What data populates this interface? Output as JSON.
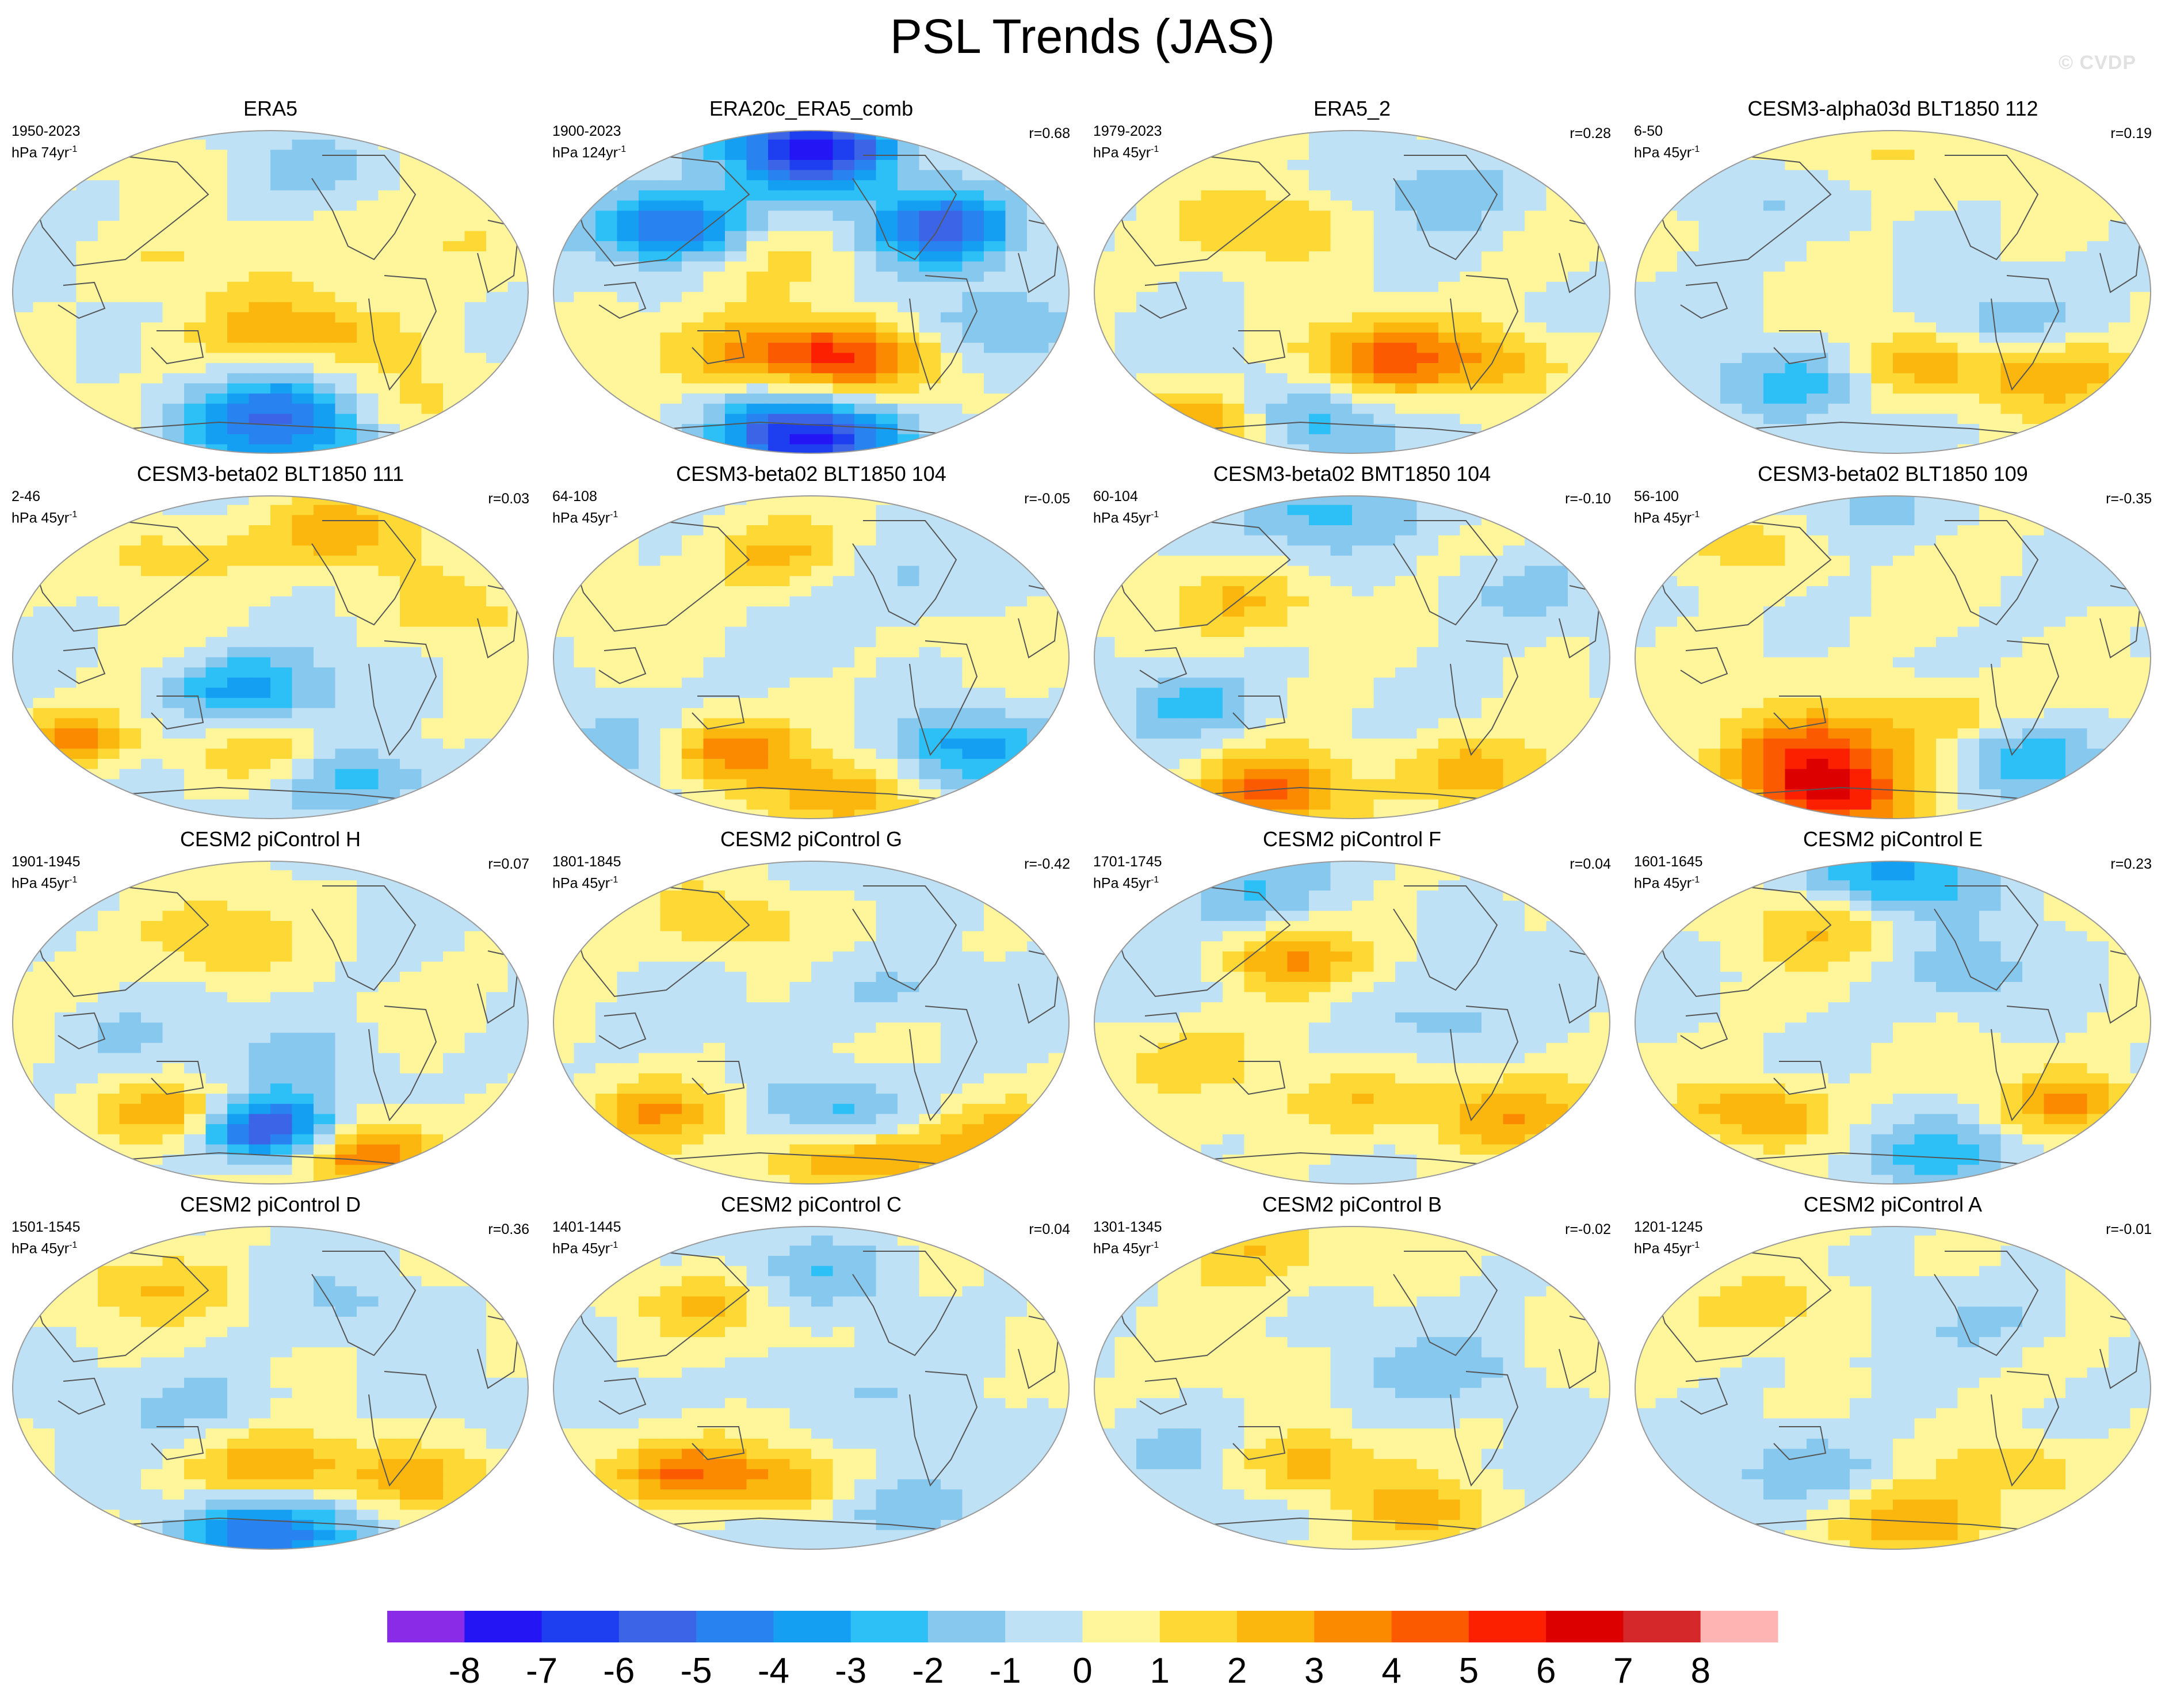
{
  "figure": {
    "title": "PSL Trends (JAS)",
    "watermark": "© CVDP"
  },
  "chart_data": {
    "type": "contour_map_panels",
    "projection": "Robinson (Pacific-centered)",
    "units": "hPa",
    "panels": [
      {
        "title": "ERA5",
        "period": "1950-2023",
        "units_line": "hPa 74yr",
        "r": "",
        "pattern": [
          [
            0.75,
            0.85,
            1.6,
            0.05
          ],
          [
            0.3,
            0.4,
            1.2,
            0.05
          ],
          [
            0.85,
            0.35,
            1.5,
            0.05
          ],
          [
            0.45,
            0.62,
            1.5,
            0.05
          ],
          [
            0.63,
            0.63,
            2.2,
            0.05
          ],
          [
            0.52,
            0.9,
            -4.8,
            0.08
          ],
          [
            0.6,
            0.14,
            -1.2,
            0.04
          ]
        ]
      },
      {
        "title": "ERA20c_ERA5_comb",
        "period": "1900-2023",
        "units_line": "hPa 124yr",
        "r": "r=0.68",
        "pattern": [
          [
            0.5,
            0.06,
            -7.5,
            0.06
          ],
          [
            0.5,
            0.95,
            -7.5,
            0.06
          ],
          [
            0.25,
            0.3,
            -5.5,
            0.05
          ],
          [
            0.75,
            0.3,
            -5,
            0.05
          ],
          [
            0.55,
            0.7,
            5.2,
            0.05
          ],
          [
            0.35,
            0.68,
            2.5,
            0.05
          ],
          [
            0.4,
            0.38,
            1.5,
            0.05
          ],
          [
            0.85,
            0.6,
            -2,
            0.05
          ]
        ]
      },
      {
        "title": "ERA5_2",
        "period": "1979-2023",
        "units_line": "hPa 45yr",
        "r": "r=0.28",
        "pattern": [
          [
            0.55,
            0.7,
            3.6,
            0.05
          ],
          [
            0.35,
            0.3,
            2,
            0.05
          ],
          [
            0.2,
            0.9,
            3,
            0.04
          ],
          [
            0.78,
            0.72,
            2.5,
            0.05
          ],
          [
            0.45,
            0.9,
            -2.5,
            0.05
          ],
          [
            0.7,
            0.2,
            -1.5,
            0.05
          ]
        ]
      },
      {
        "title": "CESM3-alpha03d BLT1850 112",
        "period": "6-50",
        "units_line": "hPa 45yr",
        "r": "r=0.19",
        "pattern": [
          [
            0.8,
            0.75,
            3.2,
            0.05
          ],
          [
            0.55,
            0.72,
            2.2,
            0.04
          ],
          [
            0.3,
            0.78,
            -2.5,
            0.05
          ],
          [
            0.45,
            0.08,
            1.6,
            0.05
          ],
          [
            0.7,
            0.6,
            -1.5,
            0.05
          ],
          [
            0.2,
            0.2,
            -1.2,
            0.05
          ]
        ]
      },
      {
        "title": "CESM3-beta02 BLT1850 111",
        "period": "2-46",
        "units_line": "hPa 45yr",
        "r": "r=0.03",
        "pattern": [
          [
            0.65,
            0.12,
            2.5,
            0.05
          ],
          [
            0.12,
            0.75,
            3.2,
            0.03
          ],
          [
            0.45,
            0.6,
            -3.5,
            0.05
          ],
          [
            0.3,
            0.18,
            1.8,
            0.05
          ],
          [
            0.48,
            0.8,
            2.2,
            0.04
          ],
          [
            0.65,
            0.88,
            -2.8,
            0.05
          ],
          [
            0.85,
            0.35,
            1.6,
            0.05
          ]
        ]
      },
      {
        "title": "CESM3-beta02 BLT1850 104",
        "period": "64-108",
        "units_line": "hPa 45yr",
        "r": "r=-0.05",
        "pattern": [
          [
            0.32,
            0.78,
            3.8,
            0.04
          ],
          [
            0.45,
            0.2,
            2.2,
            0.05
          ],
          [
            0.55,
            0.92,
            2.6,
            0.05
          ],
          [
            0.8,
            0.78,
            -3.2,
            0.05
          ],
          [
            0.15,
            0.75,
            -1.8,
            0.05
          ],
          [
            0.7,
            0.25,
            -1.4,
            0.05
          ]
        ]
      },
      {
        "title": "CESM3-beta02 BMT1850 104",
        "period": "60-104",
        "units_line": "hPa 45yr",
        "r": "r=-0.10",
        "pattern": [
          [
            0.35,
            0.92,
            4.2,
            0.05
          ],
          [
            0.3,
            0.33,
            2.4,
            0.05
          ],
          [
            0.45,
            0.05,
            -2.5,
            0.06
          ],
          [
            0.2,
            0.65,
            -2.4,
            0.04
          ],
          [
            0.75,
            0.85,
            2.8,
            0.05
          ],
          [
            0.8,
            0.3,
            -1.5,
            0.05
          ]
        ]
      },
      {
        "title": "CESM3-beta02 BLT1850 109",
        "period": "56-100",
        "units_line": "hPa 45yr",
        "r": "r=-0.35",
        "pattern": [
          [
            0.35,
            0.8,
            4.6,
            0.06
          ],
          [
            0.38,
            0.93,
            5.4,
            0.04
          ],
          [
            0.6,
            0.7,
            2.4,
            0.05
          ],
          [
            0.75,
            0.8,
            -3.2,
            0.05
          ],
          [
            0.2,
            0.15,
            2,
            0.05
          ],
          [
            0.45,
            0.05,
            -1.6,
            0.05
          ]
        ]
      },
      {
        "title": "CESM2 piControl H",
        "period": "1901-1945",
        "units_line": "hPa 45yr",
        "r": "r=0.07",
        "pattern": [
          [
            0.5,
            0.83,
            -7,
            0.04
          ],
          [
            0.68,
            0.9,
            5,
            0.04
          ],
          [
            0.32,
            0.78,
            3.2,
            0.04
          ],
          [
            0.4,
            0.25,
            1.9,
            0.05
          ],
          [
            0.6,
            0.62,
            -1.4,
            0.05
          ],
          [
            0.2,
            0.55,
            -1.2,
            0.05
          ]
        ]
      },
      {
        "title": "CESM2 piControl G",
        "period": "1801-1845",
        "units_line": "hPa 45yr",
        "r": "r=-0.42",
        "pattern": [
          [
            0.6,
            0.92,
            3.6,
            0.05
          ],
          [
            0.2,
            0.78,
            2.8,
            0.04
          ],
          [
            0.55,
            0.78,
            -2.6,
            0.05
          ],
          [
            0.35,
            0.2,
            1.7,
            0.05
          ],
          [
            0.85,
            0.85,
            2.2,
            0.05
          ],
          [
            0.65,
            0.4,
            -1.4,
            0.05
          ]
        ]
      },
      {
        "title": "CESM2 piControl F",
        "period": "1701-1745",
        "units_line": "hPa 45yr",
        "r": "r=0.04",
        "pattern": [
          [
            0.38,
            0.3,
            2.8,
            0.04
          ],
          [
            0.5,
            0.75,
            2.2,
            0.05
          ],
          [
            0.3,
            0.1,
            -2,
            0.05
          ],
          [
            0.8,
            0.78,
            2.4,
            0.05
          ],
          [
            0.65,
            0.5,
            -1.4,
            0.05
          ],
          [
            0.2,
            0.6,
            1.5,
            0.05
          ]
        ]
      },
      {
        "title": "CESM2 piControl E",
        "period": "1601-1645",
        "units_line": "hPa 45yr",
        "r": "r=0.23",
        "pattern": [
          [
            0.25,
            0.78,
            3.6,
            0.04
          ],
          [
            0.85,
            0.75,
            3,
            0.04
          ],
          [
            0.5,
            0.05,
            -3.6,
            0.06
          ],
          [
            0.6,
            0.9,
            -2.6,
            0.05
          ],
          [
            0.35,
            0.2,
            1.8,
            0.05
          ],
          [
            0.65,
            0.35,
            -1.3,
            0.05
          ]
        ]
      },
      {
        "title": "CESM2 piControl D",
        "period": "1501-1545",
        "units_line": "hPa 45yr",
        "r": "r=0.36",
        "pattern": [
          [
            0.5,
            0.94,
            -4.6,
            0.07
          ],
          [
            0.5,
            0.76,
            3.4,
            0.05
          ],
          [
            0.3,
            0.2,
            1.8,
            0.05
          ],
          [
            0.8,
            0.78,
            2.6,
            0.05
          ],
          [
            0.4,
            0.55,
            -1.4,
            0.05
          ],
          [
            0.7,
            0.25,
            -1.2,
            0.05
          ]
        ]
      },
      {
        "title": "CESM2 piControl C",
        "period": "1401-1445",
        "units_line": "hPa 45yr",
        "r": "r=0.04",
        "pattern": [
          [
            0.25,
            0.76,
            4,
            0.04
          ],
          [
            0.48,
            0.8,
            3.4,
            0.04
          ],
          [
            0.65,
            0.85,
            -2.6,
            0.05
          ],
          [
            0.3,
            0.25,
            2.2,
            0.04
          ],
          [
            0.55,
            0.15,
            -1.8,
            0.05
          ],
          [
            0.5,
            0.5,
            -1.2,
            0.05
          ]
        ]
      },
      {
        "title": "CESM2 piControl B",
        "period": "1301-1345",
        "units_line": "hPa 45yr",
        "r": "r=-0.02",
        "pattern": [
          [
            0.4,
            0.73,
            2.8,
            0.04
          ],
          [
            0.65,
            0.88,
            2.4,
            0.04
          ],
          [
            0.3,
            0.08,
            2,
            0.05
          ],
          [
            0.7,
            0.45,
            -1.5,
            0.05
          ],
          [
            0.2,
            0.7,
            -1.2,
            0.05
          ]
        ]
      },
      {
        "title": "CESM2 piControl A",
        "period": "1201-1245",
        "units_line": "hPa 45yr",
        "r": "r=-0.01",
        "pattern": [
          [
            0.55,
            0.92,
            2.8,
            0.05
          ],
          [
            0.75,
            0.75,
            2.2,
            0.04
          ],
          [
            0.35,
            0.75,
            -2,
            0.05
          ],
          [
            0.3,
            0.25,
            1.5,
            0.05
          ],
          [
            0.7,
            0.3,
            -1.3,
            0.05
          ]
        ]
      }
    ],
    "colorbar": {
      "levels": [
        "-8",
        "-7",
        "-6",
        "-5",
        "-4",
        "-3",
        "-2",
        "-1",
        "0",
        "1",
        "2",
        "3",
        "4",
        "5",
        "6",
        "7",
        "8"
      ],
      "colors": [
        "#8a2be8",
        "#2415f5",
        "#1e3ff0",
        "#3c64e6",
        "#2882f0",
        "#149ff3",
        "#2cc0f7",
        "#87c8ee",
        "#bfe1f5",
        "#fff69b",
        "#fed936",
        "#fcb70e",
        "#fc8a00",
        "#fc5a00",
        "#fc1f00",
        "#dc0000",
        "#d4282a",
        "#ffb4b4"
      ]
    }
  }
}
